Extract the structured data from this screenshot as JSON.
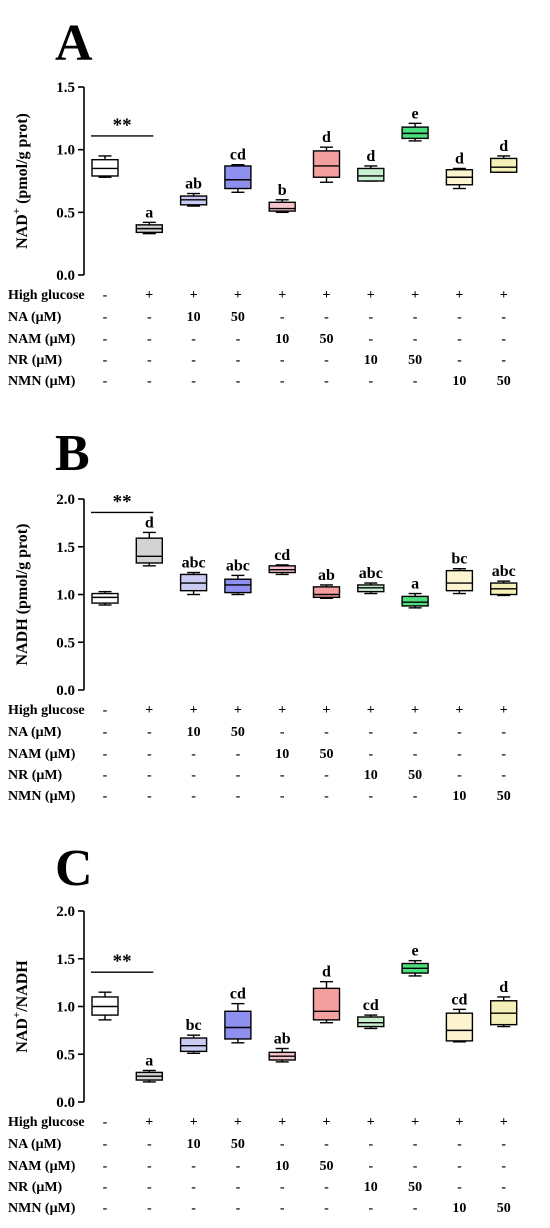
{
  "colors": {
    "axis": "#000000",
    "stroke": "#000000",
    "box_fills": [
      "#ffffff",
      "#d3d3d3",
      "#c9cbf2",
      "#8f8ff0",
      "#f6c4cc",
      "#f4a0a0",
      "#c8f0d0",
      "#4dde7e",
      "#fcf4d0",
      "#f4f0b8"
    ]
  },
  "table_rows": [
    {
      "label": "High glucose",
      "values": [
        "-",
        "+",
        "+",
        "+",
        "+",
        "+",
        "+",
        "+",
        "+",
        "+"
      ]
    },
    {
      "label": "NA (μM)",
      "values": [
        "-",
        "-",
        "10",
        "50",
        "-",
        "-",
        "-",
        "-",
        "-",
        "-"
      ]
    },
    {
      "label": "NAM (μM)",
      "values": [
        "-",
        "-",
        "-",
        "-",
        "10",
        "50",
        "-",
        "-",
        "-",
        "-"
      ]
    },
    {
      "label": "NR (μM)",
      "values": [
        "-",
        "-",
        "-",
        "-",
        "-",
        "-",
        "10",
        "50",
        "-",
        "-"
      ]
    },
    {
      "label": "NMN (μM)",
      "values": [
        "-",
        "-",
        "-",
        "-",
        "-",
        "-",
        "-",
        "-",
        "10",
        "50"
      ]
    }
  ],
  "chart_data": [
    {
      "panel": "A",
      "type": "box",
      "ylabel": "NAD⁺ (pmol/g prot)",
      "ylabel_main": "NAD",
      "ylabel_sup": "+",
      "ylabel_rest": " (pmol/g prot)",
      "ylim": [
        0,
        1.5
      ],
      "yticks": [
        "0.0",
        "0.5",
        "1.0",
        "1.5"
      ],
      "ytick_values": [
        0,
        0.5,
        1.0,
        1.5
      ],
      "significance": "**",
      "boxes": [
        {
          "min": 0.78,
          "q1": 0.79,
          "median": 0.85,
          "q3": 0.92,
          "max": 0.95,
          "label": ""
        },
        {
          "min": 0.33,
          "q1": 0.34,
          "median": 0.37,
          "q3": 0.4,
          "max": 0.42,
          "label": "a"
        },
        {
          "min": 0.55,
          "q1": 0.56,
          "median": 0.6,
          "q3": 0.63,
          "max": 0.65,
          "label": "ab"
        },
        {
          "min": 0.66,
          "q1": 0.69,
          "median": 0.76,
          "q3": 0.87,
          "max": 0.88,
          "label": "cd"
        },
        {
          "min": 0.5,
          "q1": 0.51,
          "median": 0.53,
          "q3": 0.58,
          "max": 0.6,
          "label": "b"
        },
        {
          "min": 0.74,
          "q1": 0.78,
          "median": 0.87,
          "q3": 0.99,
          "max": 1.02,
          "label": "d"
        },
        {
          "min": 0.75,
          "q1": 0.75,
          "median": 0.79,
          "q3": 0.85,
          "max": 0.87,
          "label": "d"
        },
        {
          "min": 1.07,
          "q1": 1.09,
          "median": 1.13,
          "q3": 1.18,
          "max": 1.21,
          "label": "e"
        },
        {
          "min": 0.69,
          "q1": 0.72,
          "median": 0.78,
          "q3": 0.84,
          "max": 0.85,
          "label": "d"
        },
        {
          "min": 0.82,
          "q1": 0.82,
          "median": 0.86,
          "q3": 0.93,
          "max": 0.95,
          "label": "d"
        }
      ]
    },
    {
      "panel": "B",
      "type": "box",
      "ylabel": "NADH (pmol/g prot)",
      "ylabel_main": "NADH (pmol/g prot)",
      "ylabel_sup": "",
      "ylabel_rest": "",
      "ylim": [
        0,
        2.0
      ],
      "yticks": [
        "0.0",
        "0.5",
        "1.0",
        "1.5",
        "2.0"
      ],
      "ytick_values": [
        0,
        0.5,
        1.0,
        1.5,
        2.0
      ],
      "significance": "**",
      "boxes": [
        {
          "min": 0.89,
          "q1": 0.91,
          "median": 0.97,
          "q3": 1.01,
          "max": 1.03,
          "label": ""
        },
        {
          "min": 1.3,
          "q1": 1.33,
          "median": 1.4,
          "q3": 1.59,
          "max": 1.65,
          "label": "d"
        },
        {
          "min": 1.0,
          "q1": 1.04,
          "median": 1.12,
          "q3": 1.21,
          "max": 1.23,
          "label": "abc"
        },
        {
          "min": 1.0,
          "q1": 1.02,
          "median": 1.1,
          "q3": 1.16,
          "max": 1.2,
          "label": "abc"
        },
        {
          "min": 1.21,
          "q1": 1.23,
          "median": 1.26,
          "q3": 1.3,
          "max": 1.31,
          "label": "cd"
        },
        {
          "min": 0.96,
          "q1": 0.97,
          "median": 1.0,
          "q3": 1.08,
          "max": 1.1,
          "label": "ab"
        },
        {
          "min": 1.01,
          "q1": 1.03,
          "median": 1.07,
          "q3": 1.1,
          "max": 1.12,
          "label": "abc"
        },
        {
          "min": 0.86,
          "q1": 0.88,
          "median": 0.92,
          "q3": 0.98,
          "max": 1.01,
          "label": "a"
        },
        {
          "min": 1.01,
          "q1": 1.04,
          "median": 1.12,
          "q3": 1.25,
          "max": 1.27,
          "label": "bc"
        },
        {
          "min": 0.99,
          "q1": 1.0,
          "median": 1.06,
          "q3": 1.12,
          "max": 1.14,
          "label": "abc"
        }
      ]
    },
    {
      "panel": "C",
      "type": "box",
      "ylabel": "NAD⁺/NADH",
      "ylabel_main": "NAD",
      "ylabel_sup": "+",
      "ylabel_rest": "/NADH",
      "ylim": [
        0,
        2.0
      ],
      "yticks": [
        "0.0",
        "0.5",
        "1.0",
        "1.5",
        "2.0"
      ],
      "ytick_values": [
        0,
        0.5,
        1.0,
        1.5,
        2.0
      ],
      "significance": "**",
      "boxes": [
        {
          "min": 0.86,
          "q1": 0.91,
          "median": 1.0,
          "q3": 1.1,
          "max": 1.15,
          "label": ""
        },
        {
          "min": 0.21,
          "q1": 0.23,
          "median": 0.27,
          "q3": 0.31,
          "max": 0.33,
          "label": "a"
        },
        {
          "min": 0.51,
          "q1": 0.53,
          "median": 0.59,
          "q3": 0.67,
          "max": 0.7,
          "label": "bc"
        },
        {
          "min": 0.62,
          "q1": 0.66,
          "median": 0.78,
          "q3": 0.95,
          "max": 1.03,
          "label": "cd"
        },
        {
          "min": 0.42,
          "q1": 0.44,
          "median": 0.48,
          "q3": 0.52,
          "max": 0.56,
          "label": "ab"
        },
        {
          "min": 0.83,
          "q1": 0.86,
          "median": 0.95,
          "q3": 1.19,
          "max": 1.26,
          "label": "d"
        },
        {
          "min": 0.77,
          "q1": 0.79,
          "median": 0.83,
          "q3": 0.89,
          "max": 0.91,
          "label": "cd"
        },
        {
          "min": 1.32,
          "q1": 1.35,
          "median": 1.4,
          "q3": 1.45,
          "max": 1.48,
          "label": "e"
        },
        {
          "min": 0.63,
          "q1": 0.64,
          "median": 0.75,
          "q3": 0.93,
          "max": 0.97,
          "label": "cd"
        },
        {
          "min": 0.79,
          "q1": 0.81,
          "median": 0.93,
          "q3": 1.06,
          "max": 1.1,
          "label": "d"
        }
      ]
    }
  ]
}
